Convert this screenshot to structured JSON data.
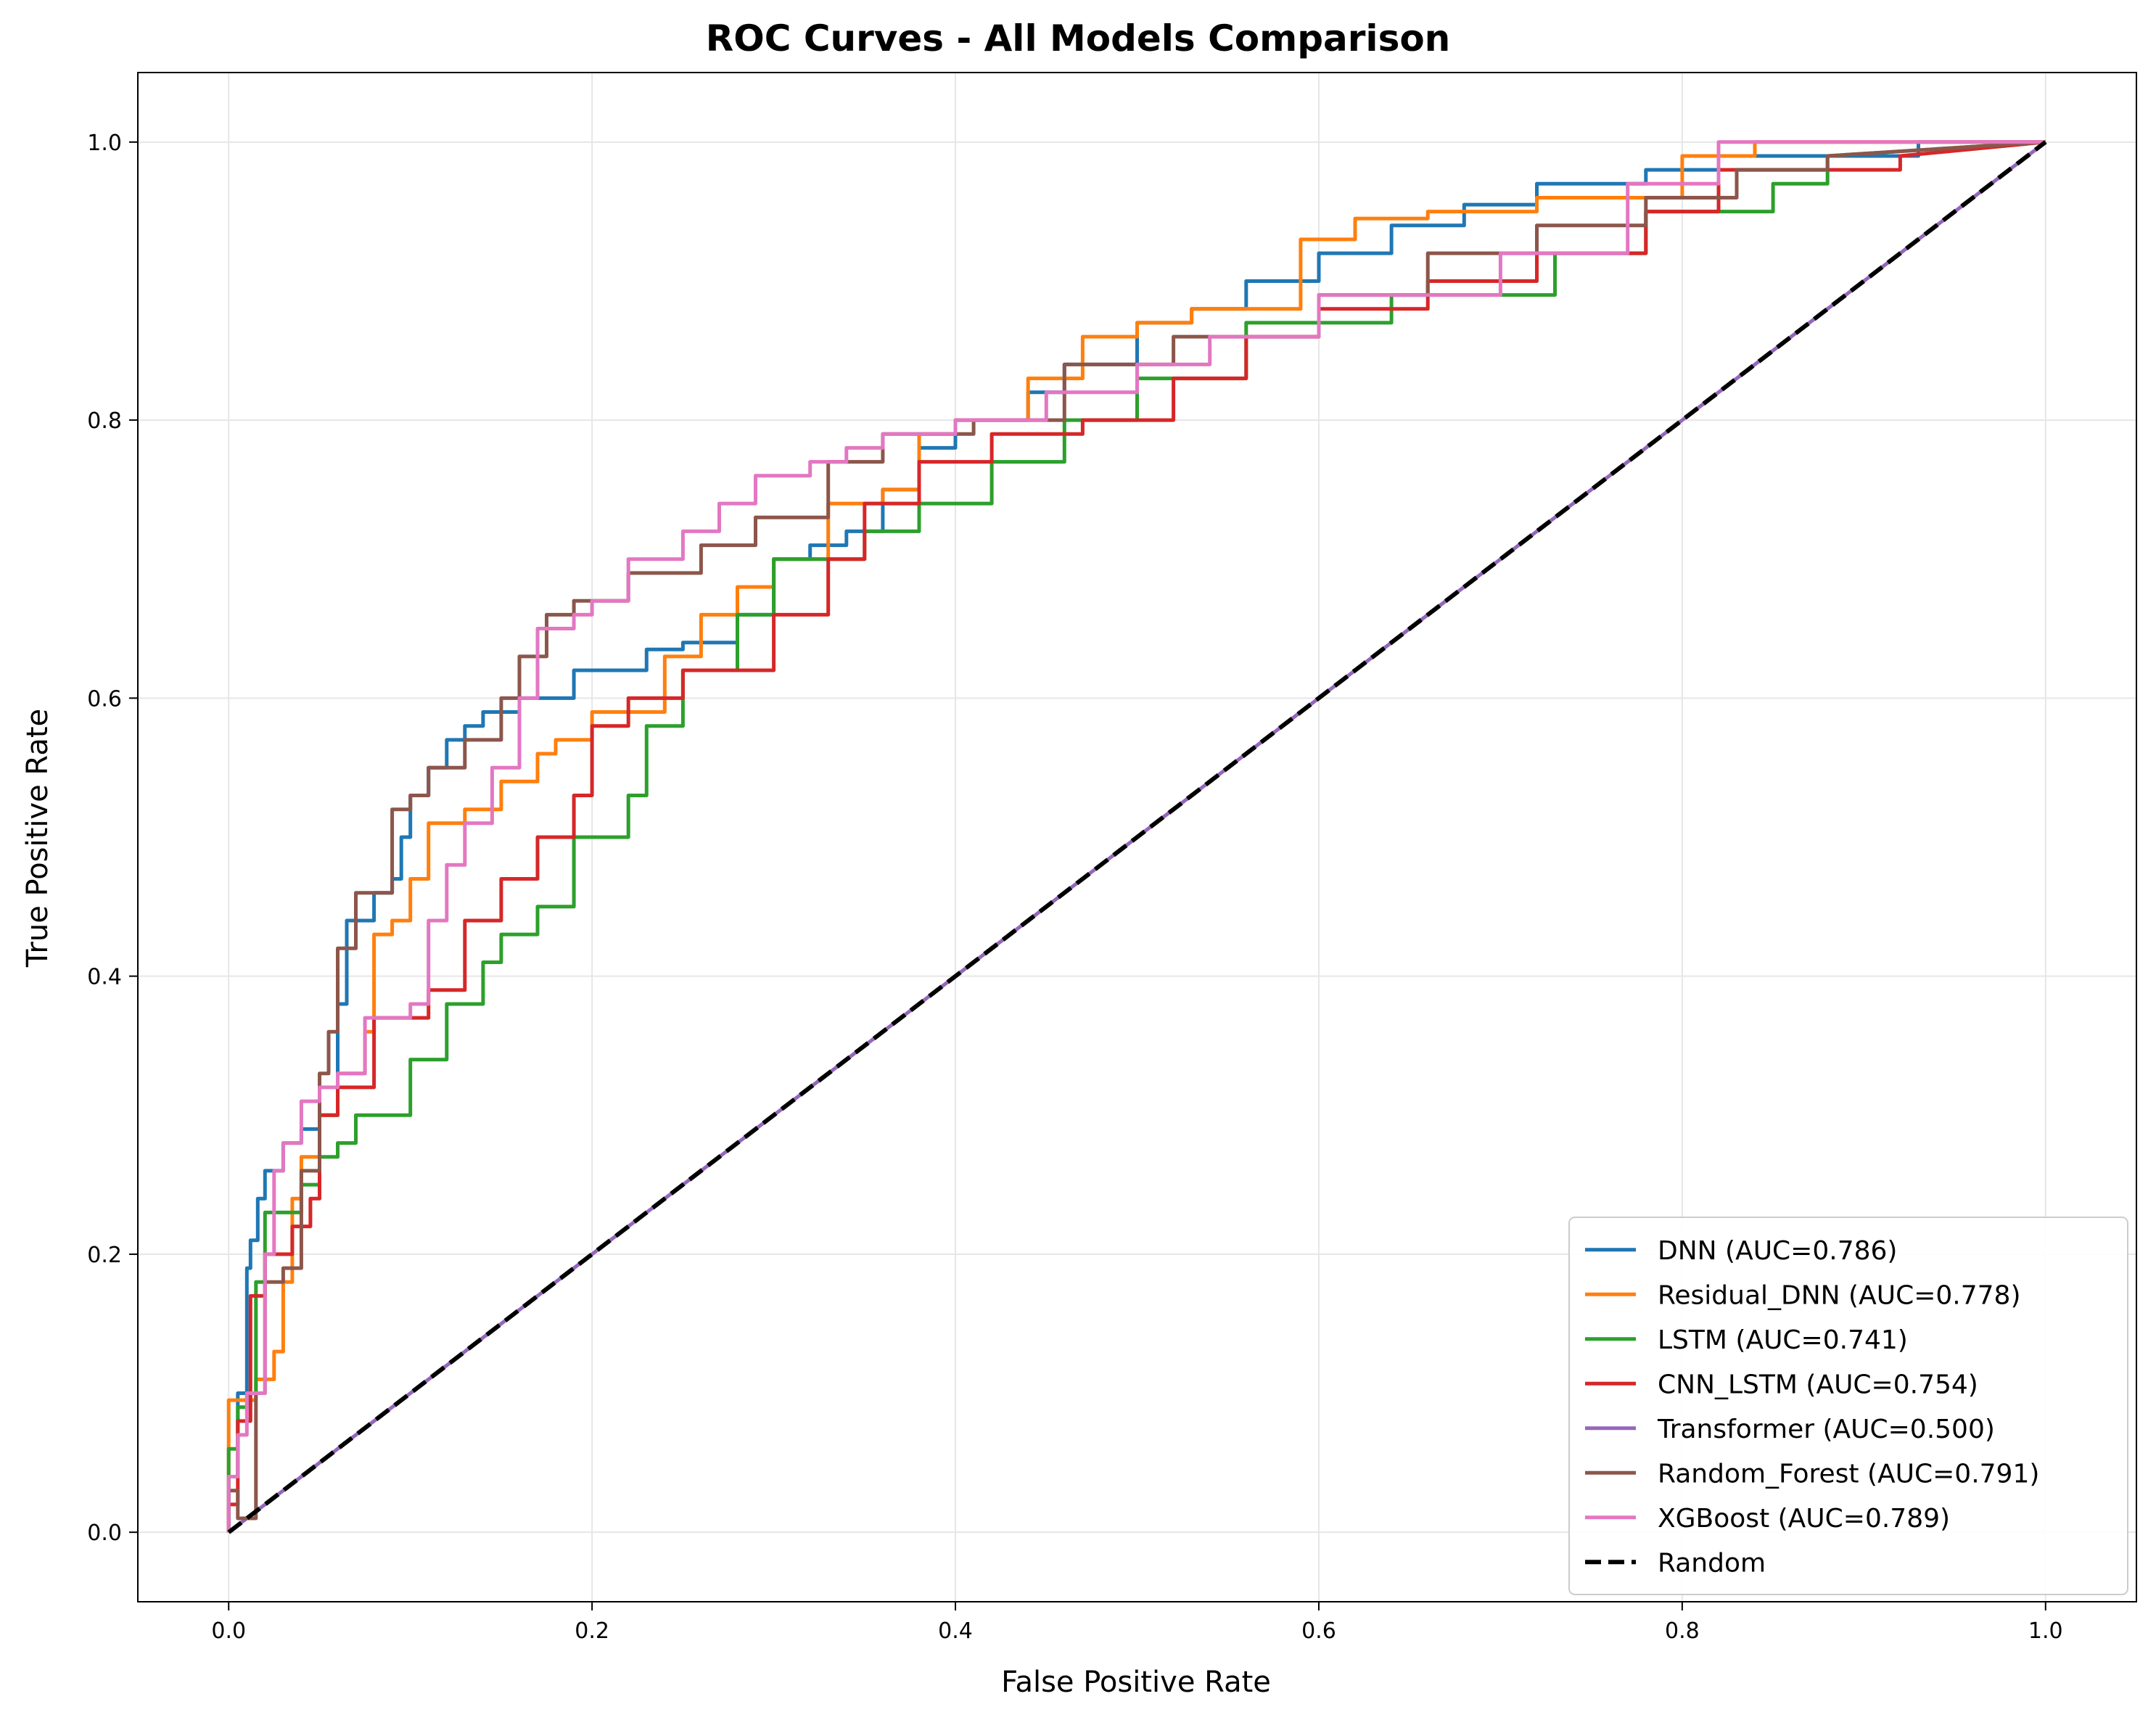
{
  "chart_data": {
    "type": "line",
    "title": "ROC Curves - All Models Comparison",
    "xlabel": "False Positive Rate",
    "ylabel": "True Positive Rate",
    "xlim": [
      -0.05,
      1.05
    ],
    "ylim": [
      -0.05,
      1.05
    ],
    "xticks": [
      "0.0",
      "0.2",
      "0.4",
      "0.6",
      "0.8",
      "1.0"
    ],
    "yticks": [
      "0.0",
      "0.2",
      "0.4",
      "0.6",
      "0.8",
      "1.0"
    ],
    "grid": true,
    "legend_position": "lower-right",
    "series": [
      {
        "name": "DNN (AUC=0.786)",
        "color": "#1f77b4",
        "x": [
          0.0,
          0.0,
          0.005,
          0.005,
          0.01,
          0.01,
          0.012,
          0.012,
          0.016,
          0.016,
          0.02,
          0.02,
          0.03,
          0.03,
          0.04,
          0.04,
          0.05,
          0.05,
          0.06,
          0.06,
          0.065,
          0.065,
          0.08,
          0.08,
          0.09,
          0.09,
          0.095,
          0.095,
          0.1,
          0.1,
          0.11,
          0.11,
          0.12,
          0.12,
          0.13,
          0.13,
          0.14,
          0.14,
          0.16,
          0.16,
          0.19,
          0.19,
          0.23,
          0.23,
          0.25,
          0.25,
          0.28,
          0.28,
          0.3,
          0.3,
          0.32,
          0.32,
          0.34,
          0.34,
          0.36,
          0.36,
          0.38,
          0.38,
          0.4,
          0.4,
          0.44,
          0.44,
          0.46,
          0.46,
          0.5,
          0.5,
          0.53,
          0.53,
          0.56,
          0.56,
          0.6,
          0.6,
          0.64,
          0.64,
          0.68,
          0.68,
          0.72,
          0.72,
          0.78,
          0.78,
          0.82,
          0.82,
          0.93,
          0.93,
          1.0
        ],
        "y": [
          0.0,
          0.04,
          0.04,
          0.1,
          0.1,
          0.19,
          0.19,
          0.21,
          0.21,
          0.24,
          0.24,
          0.26,
          0.26,
          0.28,
          0.28,
          0.29,
          0.29,
          0.3,
          0.3,
          0.38,
          0.38,
          0.44,
          0.44,
          0.46,
          0.46,
          0.47,
          0.47,
          0.5,
          0.5,
          0.53,
          0.53,
          0.55,
          0.55,
          0.57,
          0.57,
          0.58,
          0.58,
          0.59,
          0.59,
          0.6,
          0.6,
          0.62,
          0.62,
          0.635,
          0.635,
          0.64,
          0.64,
          0.66,
          0.66,
          0.7,
          0.7,
          0.71,
          0.71,
          0.72,
          0.72,
          0.75,
          0.75,
          0.78,
          0.78,
          0.8,
          0.8,
          0.82,
          0.82,
          0.84,
          0.84,
          0.87,
          0.87,
          0.88,
          0.88,
          0.9,
          0.9,
          0.92,
          0.92,
          0.94,
          0.94,
          0.955,
          0.955,
          0.97,
          0.97,
          0.98,
          0.98,
          0.99,
          0.99,
          1.0,
          1.0
        ]
      },
      {
        "name": "Residual_DNN (AUC=0.778)",
        "color": "#ff7f0e",
        "x": [
          0.0,
          0.0,
          0.015,
          0.015,
          0.025,
          0.025,
          0.03,
          0.03,
          0.035,
          0.035,
          0.04,
          0.04,
          0.05,
          0.05,
          0.06,
          0.06,
          0.075,
          0.075,
          0.08,
          0.08,
          0.09,
          0.09,
          0.1,
          0.1,
          0.11,
          0.11,
          0.13,
          0.13,
          0.15,
          0.15,
          0.17,
          0.17,
          0.18,
          0.18,
          0.2,
          0.2,
          0.24,
          0.24,
          0.26,
          0.26,
          0.28,
          0.28,
          0.3,
          0.3,
          0.33,
          0.33,
          0.36,
          0.36,
          0.38,
          0.38,
          0.4,
          0.4,
          0.44,
          0.44,
          0.47,
          0.47,
          0.5,
          0.5,
          0.53,
          0.53,
          0.59,
          0.59,
          0.62,
          0.62,
          0.66,
          0.66,
          0.72,
          0.72,
          0.8,
          0.8,
          0.84,
          0.84,
          1.0
        ],
        "y": [
          0.0,
          0.095,
          0.095,
          0.11,
          0.11,
          0.13,
          0.13,
          0.18,
          0.18,
          0.24,
          0.24,
          0.27,
          0.27,
          0.3,
          0.3,
          0.33,
          0.33,
          0.36,
          0.36,
          0.43,
          0.43,
          0.44,
          0.44,
          0.47,
          0.47,
          0.51,
          0.51,
          0.52,
          0.52,
          0.54,
          0.54,
          0.56,
          0.56,
          0.57,
          0.57,
          0.59,
          0.59,
          0.63,
          0.63,
          0.66,
          0.66,
          0.68,
          0.68,
          0.7,
          0.7,
          0.74,
          0.74,
          0.75,
          0.75,
          0.79,
          0.79,
          0.8,
          0.8,
          0.83,
          0.83,
          0.86,
          0.86,
          0.87,
          0.87,
          0.88,
          0.88,
          0.93,
          0.93,
          0.945,
          0.945,
          0.95,
          0.95,
          0.96,
          0.96,
          0.99,
          0.99,
          1.0,
          1.0
        ]
      },
      {
        "name": "LSTM (AUC=0.741)",
        "color": "#2ca02c",
        "x": [
          0.0,
          0.0,
          0.005,
          0.005,
          0.01,
          0.01,
          0.015,
          0.015,
          0.02,
          0.02,
          0.04,
          0.04,
          0.05,
          0.05,
          0.06,
          0.06,
          0.07,
          0.07,
          0.1,
          0.1,
          0.12,
          0.12,
          0.14,
          0.14,
          0.15,
          0.15,
          0.17,
          0.17,
          0.19,
          0.19,
          0.22,
          0.22,
          0.23,
          0.23,
          0.25,
          0.25,
          0.28,
          0.28,
          0.3,
          0.3,
          0.35,
          0.35,
          0.38,
          0.38,
          0.42,
          0.42,
          0.46,
          0.46,
          0.5,
          0.5,
          0.56,
          0.56,
          0.64,
          0.64,
          0.73,
          0.73,
          0.78,
          0.78,
          0.85,
          0.85,
          0.88,
          0.88,
          1.0
        ],
        "y": [
          0.0,
          0.06,
          0.06,
          0.09,
          0.09,
          0.1,
          0.1,
          0.18,
          0.18,
          0.23,
          0.23,
          0.25,
          0.25,
          0.27,
          0.27,
          0.28,
          0.28,
          0.3,
          0.3,
          0.34,
          0.34,
          0.38,
          0.38,
          0.41,
          0.41,
          0.43,
          0.43,
          0.45,
          0.45,
          0.5,
          0.5,
          0.53,
          0.53,
          0.58,
          0.58,
          0.62,
          0.62,
          0.66,
          0.66,
          0.7,
          0.7,
          0.72,
          0.72,
          0.74,
          0.74,
          0.77,
          0.77,
          0.8,
          0.8,
          0.83,
          0.83,
          0.87,
          0.87,
          0.89,
          0.89,
          0.92,
          0.92,
          0.95,
          0.95,
          0.97,
          0.97,
          0.99,
          1.0
        ]
      },
      {
        "name": "CNN_LSTM (AUC=0.754)",
        "color": "#d62728",
        "x": [
          0.0,
          0.0,
          0.005,
          0.005,
          0.012,
          0.012,
          0.02,
          0.02,
          0.035,
          0.035,
          0.045,
          0.045,
          0.05,
          0.05,
          0.06,
          0.06,
          0.08,
          0.08,
          0.11,
          0.11,
          0.13,
          0.13,
          0.15,
          0.15,
          0.17,
          0.17,
          0.19,
          0.19,
          0.2,
          0.2,
          0.22,
          0.22,
          0.25,
          0.25,
          0.3,
          0.3,
          0.33,
          0.33,
          0.35,
          0.35,
          0.38,
          0.38,
          0.42,
          0.42,
          0.47,
          0.47,
          0.52,
          0.52,
          0.56,
          0.56,
          0.6,
          0.6,
          0.66,
          0.66,
          0.72,
          0.72,
          0.78,
          0.78,
          0.82,
          0.82,
          0.92,
          0.92,
          1.0
        ],
        "y": [
          0.0,
          0.02,
          0.02,
          0.08,
          0.08,
          0.17,
          0.17,
          0.2,
          0.2,
          0.22,
          0.22,
          0.24,
          0.24,
          0.3,
          0.3,
          0.32,
          0.32,
          0.37,
          0.37,
          0.39,
          0.39,
          0.44,
          0.44,
          0.47,
          0.47,
          0.5,
          0.5,
          0.53,
          0.53,
          0.58,
          0.58,
          0.6,
          0.6,
          0.62,
          0.62,
          0.66,
          0.66,
          0.7,
          0.7,
          0.74,
          0.74,
          0.77,
          0.77,
          0.79,
          0.79,
          0.8,
          0.8,
          0.83,
          0.83,
          0.86,
          0.86,
          0.88,
          0.88,
          0.9,
          0.9,
          0.92,
          0.92,
          0.95,
          0.95,
          0.98,
          0.98,
          0.99,
          1.0
        ]
      },
      {
        "name": "Transformer (AUC=0.500)",
        "color": "#9467bd",
        "x": [
          0.0,
          1.0
        ],
        "y": [
          0.0,
          1.0
        ]
      },
      {
        "name": "Random_Forest (AUC=0.791)",
        "color": "#8c564b",
        "x": [
          0.0,
          0.0,
          0.005,
          0.005,
          0.015,
          0.015,
          0.02,
          0.02,
          0.03,
          0.03,
          0.04,
          0.04,
          0.05,
          0.05,
          0.055,
          0.055,
          0.06,
          0.06,
          0.07,
          0.07,
          0.09,
          0.09,
          0.1,
          0.1,
          0.11,
          0.11,
          0.13,
          0.13,
          0.15,
          0.15,
          0.16,
          0.16,
          0.175,
          0.175,
          0.19,
          0.19,
          0.22,
          0.22,
          0.26,
          0.26,
          0.29,
          0.29,
          0.33,
          0.33,
          0.36,
          0.36,
          0.41,
          0.41,
          0.46,
          0.46,
          0.52,
          0.52,
          0.6,
          0.6,
          0.66,
          0.66,
          0.72,
          0.72,
          0.78,
          0.78,
          0.83,
          0.83,
          0.88,
          0.88,
          1.0
        ],
        "y": [
          0.0,
          0.03,
          0.03,
          0.01,
          0.01,
          0.1,
          0.1,
          0.18,
          0.18,
          0.19,
          0.19,
          0.26,
          0.26,
          0.33,
          0.33,
          0.36,
          0.36,
          0.42,
          0.42,
          0.46,
          0.46,
          0.52,
          0.52,
          0.53,
          0.53,
          0.55,
          0.55,
          0.57,
          0.57,
          0.6,
          0.6,
          0.63,
          0.63,
          0.66,
          0.66,
          0.67,
          0.67,
          0.69,
          0.69,
          0.71,
          0.71,
          0.73,
          0.73,
          0.77,
          0.77,
          0.79,
          0.79,
          0.8,
          0.8,
          0.84,
          0.84,
          0.86,
          0.86,
          0.89,
          0.89,
          0.92,
          0.92,
          0.94,
          0.94,
          0.96,
          0.96,
          0.98,
          0.98,
          0.99,
          1.0
        ]
      },
      {
        "name": "XGBoost (AUC=0.789)",
        "color": "#e377c2",
        "x": [
          0.0,
          0.0,
          0.005,
          0.005,
          0.01,
          0.01,
          0.02,
          0.02,
          0.025,
          0.025,
          0.03,
          0.03,
          0.04,
          0.04,
          0.05,
          0.05,
          0.06,
          0.06,
          0.075,
          0.075,
          0.1,
          0.1,
          0.11,
          0.11,
          0.12,
          0.12,
          0.13,
          0.13,
          0.145,
          0.145,
          0.16,
          0.16,
          0.17,
          0.17,
          0.19,
          0.19,
          0.2,
          0.2,
          0.22,
          0.22,
          0.25,
          0.25,
          0.27,
          0.27,
          0.29,
          0.29,
          0.32,
          0.32,
          0.34,
          0.34,
          0.36,
          0.36,
          0.4,
          0.4,
          0.45,
          0.45,
          0.5,
          0.5,
          0.54,
          0.54,
          0.6,
          0.6,
          0.7,
          0.7,
          0.77,
          0.77,
          0.82,
          0.82,
          1.0
        ],
        "y": [
          0.0,
          0.04,
          0.04,
          0.07,
          0.07,
          0.1,
          0.1,
          0.2,
          0.2,
          0.26,
          0.26,
          0.28,
          0.28,
          0.31,
          0.31,
          0.32,
          0.32,
          0.33,
          0.33,
          0.37,
          0.37,
          0.38,
          0.38,
          0.44,
          0.44,
          0.48,
          0.48,
          0.51,
          0.51,
          0.55,
          0.55,
          0.6,
          0.6,
          0.65,
          0.65,
          0.66,
          0.66,
          0.67,
          0.67,
          0.7,
          0.7,
          0.72,
          0.72,
          0.74,
          0.74,
          0.76,
          0.76,
          0.77,
          0.77,
          0.78,
          0.78,
          0.79,
          0.79,
          0.8,
          0.8,
          0.82,
          0.82,
          0.84,
          0.84,
          0.86,
          0.86,
          0.89,
          0.89,
          0.92,
          0.92,
          0.97,
          0.97,
          1.0,
          1.0
        ]
      },
      {
        "name": "Random",
        "color": "#000000",
        "dashed": true,
        "x": [
          0.0,
          1.0
        ],
        "y": [
          0.0,
          1.0
        ]
      }
    ]
  }
}
